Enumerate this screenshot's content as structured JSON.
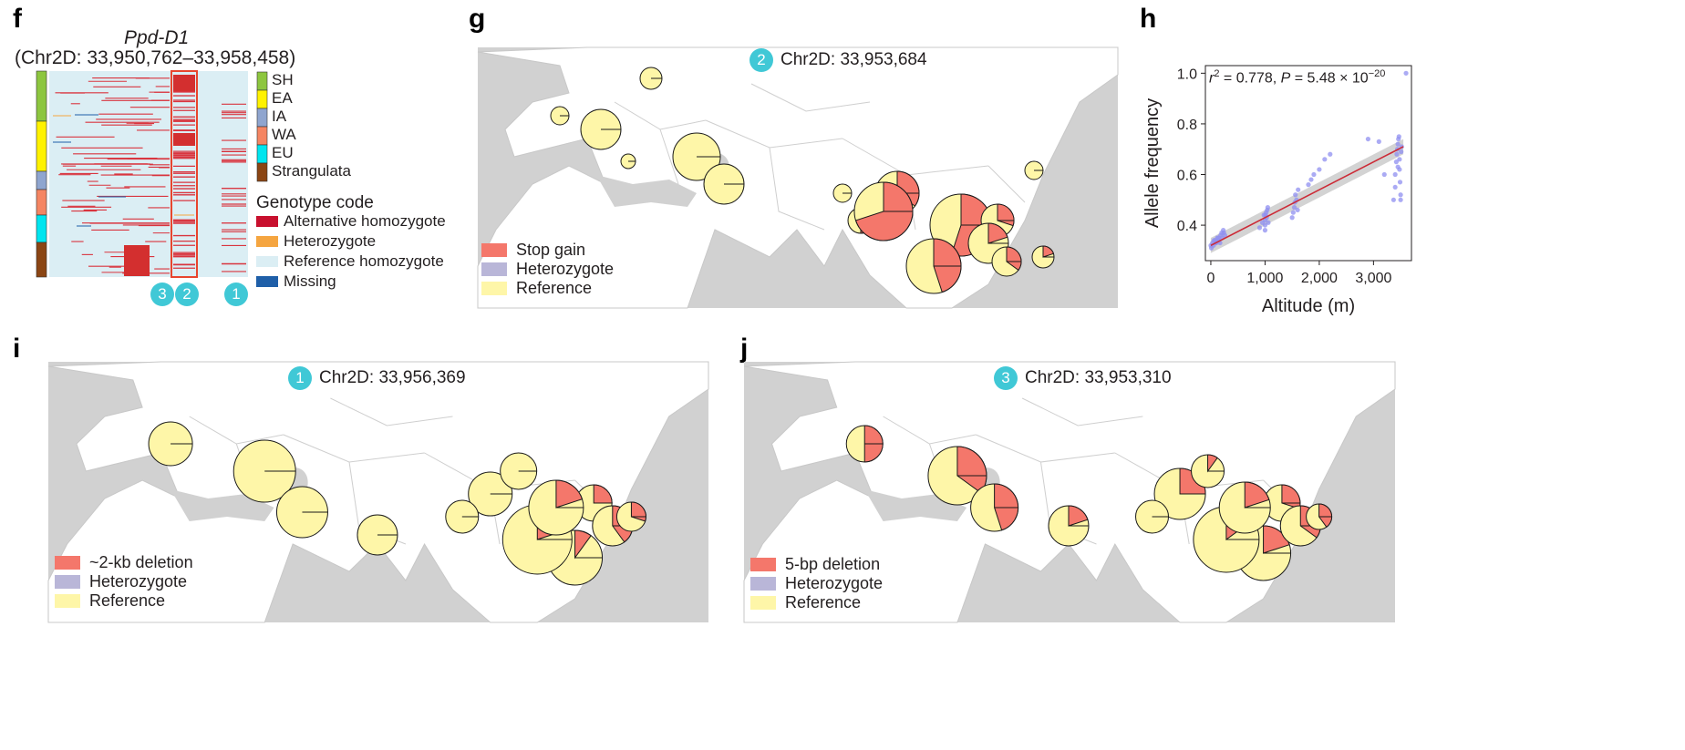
{
  "panels": {
    "f": {
      "letter": "f",
      "gene": "Ppd-D1",
      "coords": "(Chr2D: 33,950,762–33,958,458)",
      "group_legend": [
        {
          "label": "SH",
          "color": "#8dc63f"
        },
        {
          "label": "EA",
          "color": "#fff200"
        },
        {
          "label": "IA",
          "color": "#8fa5cf"
        },
        {
          "label": "WA",
          "color": "#f58562"
        },
        {
          "label": "EU",
          "color": "#00e5ef"
        },
        {
          "label": "Strangulata",
          "color": "#8b4513"
        }
      ],
      "genotype_title": "Genotype code",
      "genotype_legend": [
        {
          "label": "Alternative homozygote",
          "color": "#c8102e"
        },
        {
          "label": "Heterozygote",
          "color": "#f5a540"
        },
        {
          "label": "Reference homozygote",
          "color": "#dbeef4"
        },
        {
          "label": "Missing",
          "color": "#1f5fa8"
        }
      ],
      "column_badges": [
        "3",
        "2",
        "1"
      ]
    },
    "g": {
      "letter": "g",
      "badge": "2",
      "title": "Chr2D: 33,953,684",
      "legend": [
        {
          "label": "Stop gain",
          "color": "#f4776b"
        },
        {
          "label": "Heterozygote",
          "color": "#b9b6d8"
        },
        {
          "label": "Reference",
          "color": "#fef6a8"
        }
      ]
    },
    "h": {
      "letter": "h",
      "annotation": {
        "r2_label": "r",
        "r2_sup": "2",
        "r2_value": " = 0.778, ",
        "p_label": "P",
        "p_value": " = 5.48 × 10",
        "p_exp": "−20"
      }
    },
    "i": {
      "letter": "i",
      "badge": "1",
      "title": "Chr2D: 33,956,369",
      "legend": [
        {
          "label": "~2-kb deletion",
          "color": "#f4776b"
        },
        {
          "label": "Heterozygote",
          "color": "#b9b6d8"
        },
        {
          "label": "Reference",
          "color": "#fef6a8"
        }
      ]
    },
    "j": {
      "letter": "j",
      "badge": "3",
      "title": "Chr2D: 33,953,310",
      "legend": [
        {
          "label": "5-bp deletion",
          "color": "#f4776b"
        },
        {
          "label": "Heterozygote",
          "color": "#b9b6d8"
        },
        {
          "label": "Reference",
          "color": "#fef6a8"
        }
      ]
    }
  },
  "chart_data": {
    "type": "scatter",
    "xlabel": "Altitude (m)",
    "ylabel": "Allele frequency",
    "xlim": [
      -100,
      3700
    ],
    "ylim": [
      0.26,
      1.03
    ],
    "xticks": [
      0,
      1000,
      2000,
      3000
    ],
    "xtick_labels": [
      "0",
      "1,000",
      "2,000",
      "3,000"
    ],
    "yticks": [
      0.4,
      0.6,
      0.8,
      1.0
    ],
    "ytick_labels": [
      "0.4",
      "0.6",
      "0.8",
      "1.0"
    ],
    "fit_line": {
      "x": [
        0,
        3550
      ],
      "y": [
        0.32,
        0.71
      ]
    },
    "colors": {
      "points": "#8f8ff0",
      "fit": "#cc2a36",
      "band": "#c8c8c8"
    },
    "points": [
      [
        0,
        0.32
      ],
      [
        30,
        0.33
      ],
      [
        60,
        0.34
      ],
      [
        90,
        0.33
      ],
      [
        120,
        0.35
      ],
      [
        150,
        0.34
      ],
      [
        180,
        0.36
      ],
      [
        210,
        0.35
      ],
      [
        240,
        0.37
      ],
      [
        260,
        0.36
      ],
      [
        10,
        0.31
      ],
      [
        50,
        0.32
      ],
      [
        100,
        0.33
      ],
      [
        140,
        0.35
      ],
      [
        200,
        0.37
      ],
      [
        230,
        0.38
      ],
      [
        80,
        0.34
      ],
      [
        170,
        0.33
      ],
      [
        900,
        0.39
      ],
      [
        950,
        0.41
      ],
      [
        1000,
        0.4
      ],
      [
        1000,
        0.42
      ],
      [
        1010,
        0.44
      ],
      [
        1020,
        0.45
      ],
      [
        1030,
        0.43
      ],
      [
        1040,
        0.46
      ],
      [
        1050,
        0.47
      ],
      [
        1000,
        0.38
      ],
      [
        1060,
        0.41
      ],
      [
        980,
        0.44
      ],
      [
        1500,
        0.43
      ],
      [
        1520,
        0.45
      ],
      [
        1540,
        0.47
      ],
      [
        1550,
        0.49
      ],
      [
        1560,
        0.52
      ],
      [
        1580,
        0.5
      ],
      [
        1600,
        0.46
      ],
      [
        1610,
        0.54
      ],
      [
        1800,
        0.56
      ],
      [
        1900,
        0.6
      ],
      [
        2000,
        0.62
      ],
      [
        2100,
        0.66
      ],
      [
        2200,
        0.68
      ],
      [
        1850,
        0.58
      ],
      [
        2900,
        0.74
      ],
      [
        3100,
        0.73
      ],
      [
        3200,
        0.6
      ],
      [
        3370,
        0.5
      ],
      [
        3400,
        0.55
      ],
      [
        3400,
        0.6
      ],
      [
        3420,
        0.65
      ],
      [
        3430,
        0.68
      ],
      [
        3440,
        0.7
      ],
      [
        3450,
        0.72
      ],
      [
        3460,
        0.74
      ],
      [
        3470,
        0.75
      ],
      [
        3480,
        0.62
      ],
      [
        3490,
        0.57
      ],
      [
        3500,
        0.52
      ],
      [
        3510,
        0.69
      ],
      [
        3520,
        0.71
      ],
      [
        3480,
        0.66
      ],
      [
        3450,
        0.63
      ],
      [
        3500,
        0.5
      ],
      [
        3600,
        1.0
      ]
    ]
  }
}
